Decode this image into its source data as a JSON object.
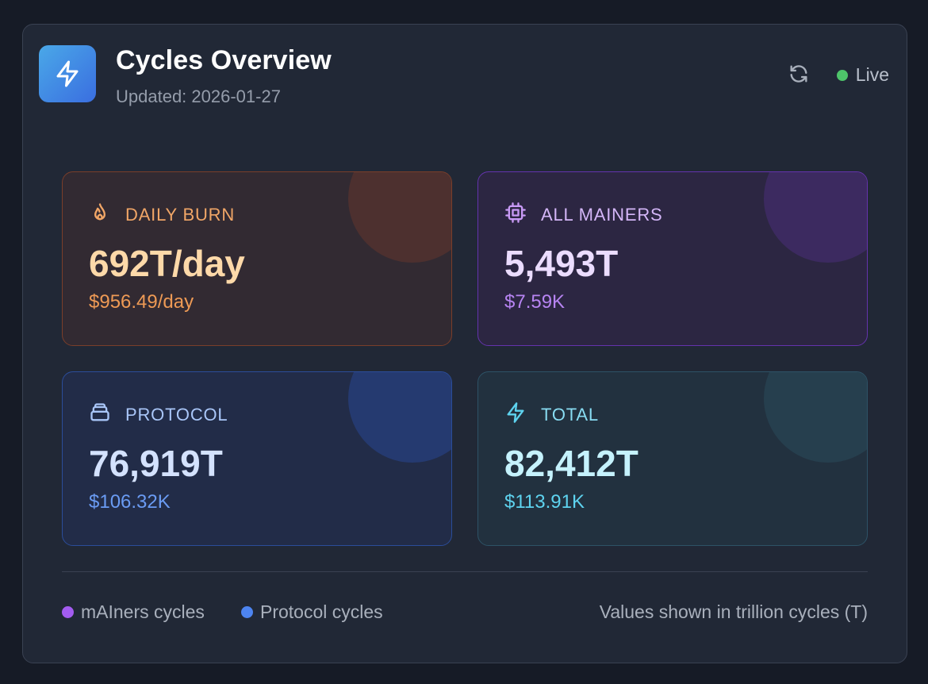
{
  "header": {
    "title": "Cycles Overview",
    "updated": "Updated: 2026-01-27",
    "live_label": "Live",
    "live_color": "#4ec46a"
  },
  "cards": {
    "daily_burn": {
      "label": "DAILY BURN",
      "value": "692T/day",
      "usd": "$956.49/day",
      "icon": "flame-icon",
      "accent": "#f1a667"
    },
    "all_mainers": {
      "label": "ALL MAINERS",
      "value": "5,493T",
      "usd": "$7.59K",
      "icon": "cpu-chip-icon",
      "accent": "#b784f2"
    },
    "protocol": {
      "label": "PROTOCOL",
      "value": "76,919T",
      "usd": "$106.32K",
      "icon": "database-icon",
      "accent": "#6a9bf3"
    },
    "total": {
      "label": "TOTAL",
      "value": "82,412T",
      "usd": "$113.91K",
      "icon": "lightning-icon",
      "accent": "#5ed3ef"
    }
  },
  "footer": {
    "legend": [
      {
        "label": "mAIners cycles",
        "color": "#a35cf0"
      },
      {
        "label": "Protocol cycles",
        "color": "#4d84f0"
      }
    ],
    "note": "Values shown in trillion cycles (T)"
  }
}
